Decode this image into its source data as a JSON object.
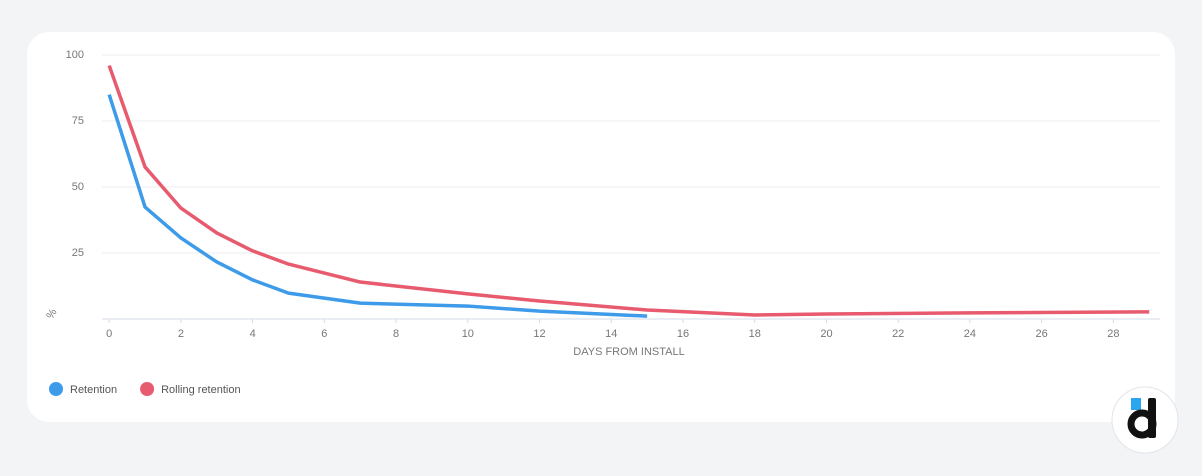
{
  "chart_data": {
    "type": "line",
    "x_label": "DAYS FROM INSTALL",
    "y_label": "%",
    "x": [
      0,
      1,
      2,
      3,
      4,
      5,
      7,
      10,
      12,
      15,
      18,
      20,
      24,
      29
    ],
    "series": [
      {
        "name": "Retention",
        "color": "#3d9be9",
        "values": [
          85,
          42.4,
          30.7,
          21.6,
          14.8,
          9.8,
          6,
          4.9,
          3,
          1.1,
          null,
          null,
          null,
          null
        ]
      },
      {
        "name": "Rolling retention",
        "color": "#e85a6e",
        "values": [
          96,
          57.6,
          42,
          32.6,
          25.8,
          20.8,
          14,
          9.5,
          6.8,
          3.4,
          1.5,
          1.9,
          2.3,
          2.7
        ]
      }
    ],
    "xlim": [
      -0.2,
      29.3
    ],
    "xticks": [
      0,
      2,
      4,
      6,
      8,
      10,
      12,
      14,
      16,
      18,
      20,
      22,
      24,
      26,
      28
    ],
    "ylim": [
      0,
      100
    ],
    "yticks": [
      25,
      50,
      75,
      100
    ],
    "grid": true
  }
}
